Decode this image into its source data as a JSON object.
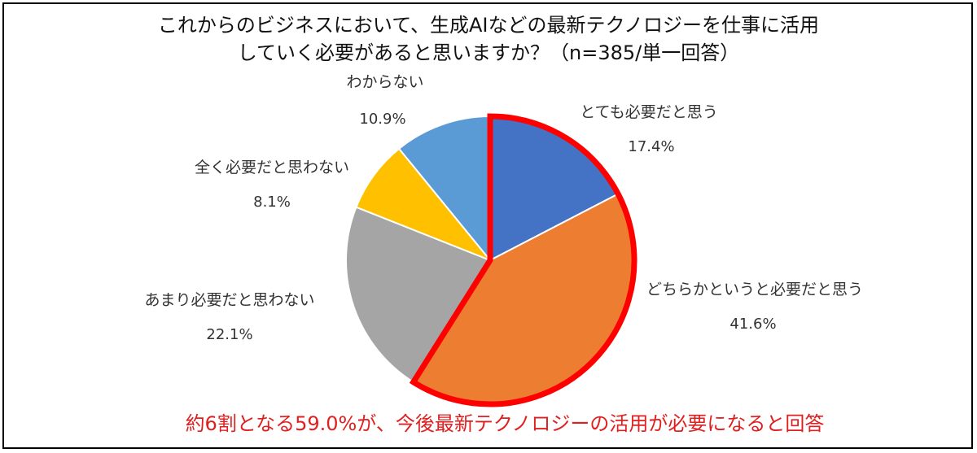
{
  "chart_data": {
    "type": "pie",
    "title_lines": [
      "これからのビジネスにおいて、生成AIなどの最新テクノロジーを仕事に活用",
      "していく必要があると思いますか？（n=385/単一回答）"
    ],
    "slices": [
      {
        "name": "とても必要だと思う",
        "value": 17.4,
        "value_label": "17.4%",
        "color": "#4472C4"
      },
      {
        "name": "どちらかというと必要だと思う",
        "value": 41.6,
        "value_label": "41.6%",
        "color": "#ED7D31"
      },
      {
        "name": "あまり必要だと思わない",
        "value": 22.1,
        "value_label": "22.1%",
        "color": "#A5A5A5"
      },
      {
        "name": "全く必要だと思わない",
        "value": 8.1,
        "value_label": "8.1%",
        "color": "#FFC000"
      },
      {
        "name": "わからない",
        "value": 10.9,
        "value_label": "10.9%",
        "color": "#5B9BD5"
      }
    ],
    "highlight": {
      "slices": [
        0,
        1
      ],
      "outline_color": "#FF0000"
    },
    "callout": "約6割となる59.0%が、今後最新テクノロジーの活用が必要になると回答",
    "callout_color": "#E02020"
  }
}
